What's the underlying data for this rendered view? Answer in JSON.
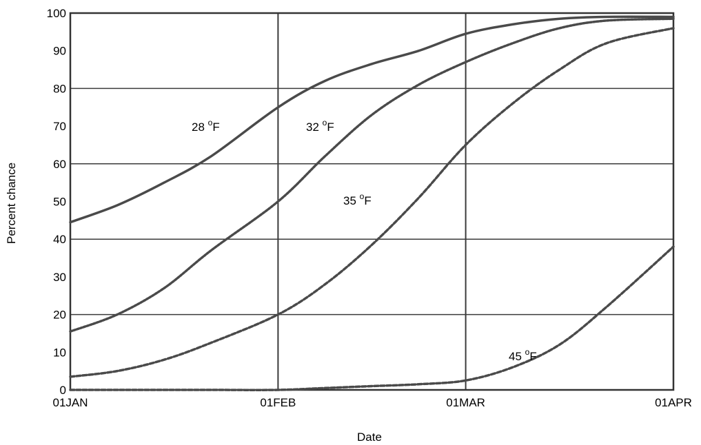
{
  "chart_data": {
    "type": "line",
    "title": "",
    "xlabel": "Date",
    "ylabel": "Percent chance",
    "x_ticks": [
      "01JAN",
      "01FEB",
      "01MAR",
      "01APR"
    ],
    "ylim": [
      0,
      100
    ],
    "y_ticks": [
      "0",
      "10",
      "20",
      "30",
      "40",
      "50",
      "60",
      "70",
      "80",
      "90",
      "100"
    ],
    "grid": true,
    "series": [
      {
        "name": "28 °F",
        "label_text": "28",
        "label_degree": "o",
        "label_unit": "F",
        "style": "solid",
        "x": [
          "01JAN",
          "08JAN",
          "15JAN",
          "22JAN",
          "01FEB",
          "08FEB",
          "15FEB",
          "22FEB",
          "01MAR",
          "08MAR",
          "15MAR",
          "22MAR",
          "01APR"
        ],
        "y": [
          44.5,
          49,
          55,
          62,
          75,
          82,
          86.5,
          90,
          94.5,
          97,
          98.5,
          99,
          99
        ]
      },
      {
        "name": "32 °F",
        "label_text": "32",
        "label_degree": "o",
        "label_unit": "F",
        "style": "dotted",
        "x": [
          "01JAN",
          "08JAN",
          "15JAN",
          "22JAN",
          "01FEB",
          "08FEB",
          "15FEB",
          "22FEB",
          "01MAR",
          "08MAR",
          "15MAR",
          "22MAR",
          "01APR"
        ],
        "y": [
          15.5,
          20,
          27,
          37,
          50,
          62,
          73,
          81,
          87,
          92,
          96,
          98,
          98.5
        ]
      },
      {
        "name": "35 °F",
        "label_text": "35",
        "label_degree": "o",
        "label_unit": "F",
        "style": "dashed",
        "x": [
          "01JAN",
          "08JAN",
          "15JAN",
          "22JAN",
          "01FEB",
          "08FEB",
          "15FEB",
          "22FEB",
          "01MAR",
          "08MAR",
          "15MAR",
          "22MAR",
          "01APR"
        ],
        "y": [
          3.5,
          5,
          8,
          12.5,
          20,
          28,
          38.5,
          51,
          65,
          76,
          85,
          92,
          96
        ]
      },
      {
        "name": "45 °F",
        "label_text": "45",
        "label_degree": "o",
        "label_unit": "F",
        "style": "dashed",
        "x": [
          "01JAN",
          "08JAN",
          "15JAN",
          "22JAN",
          "01FEB",
          "08FEB",
          "15FEB",
          "22FEB",
          "01MAR",
          "08MAR",
          "15MAR",
          "22MAR",
          "01APR"
        ],
        "y": [
          0,
          0,
          0,
          0,
          0,
          0.5,
          1,
          1.5,
          2.5,
          6,
          12,
          22,
          38
        ]
      }
    ]
  },
  "colors": {
    "line": "#4a4a4a",
    "grid": "#3a3a3a",
    "frame": "#333333",
    "text": "#000000"
  }
}
